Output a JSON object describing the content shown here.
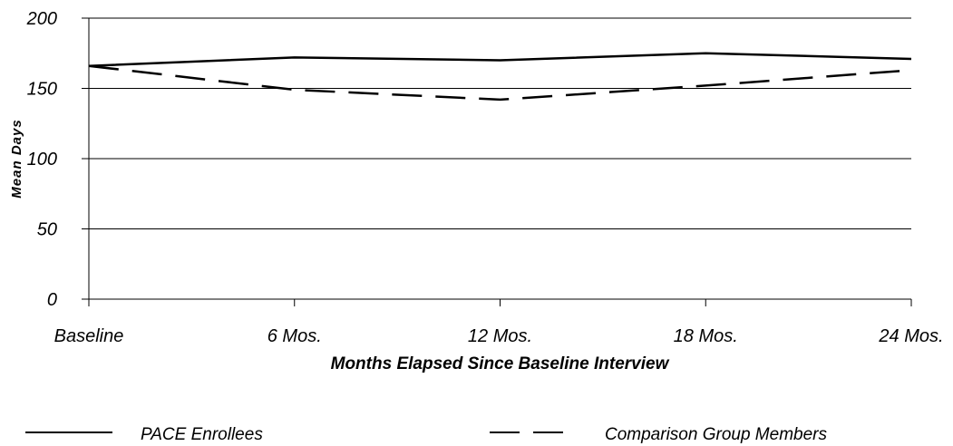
{
  "chart_data": {
    "type": "line",
    "title": "",
    "xlabel": "Months Elapsed Since Baseline Interview",
    "ylabel": "Mean Days",
    "categories": [
      "Baseline",
      "6 Mos.",
      "12 Mos.",
      "18 Mos.",
      "24 Mos."
    ],
    "ylim": [
      0,
      200
    ],
    "yticks": [
      "0",
      "50",
      "100",
      "150",
      "200"
    ],
    "grid": "horizontal",
    "legend_position": "bottom",
    "series": [
      {
        "name": "PACE Enrollees",
        "style": "solid",
        "color": "#000000",
        "values": [
          166,
          172,
          170,
          175,
          171
        ]
      },
      {
        "name": "Comparison Group Members",
        "style": "dashed",
        "color": "#000000",
        "values": [
          166,
          149,
          142,
          152,
          163
        ]
      }
    ]
  }
}
